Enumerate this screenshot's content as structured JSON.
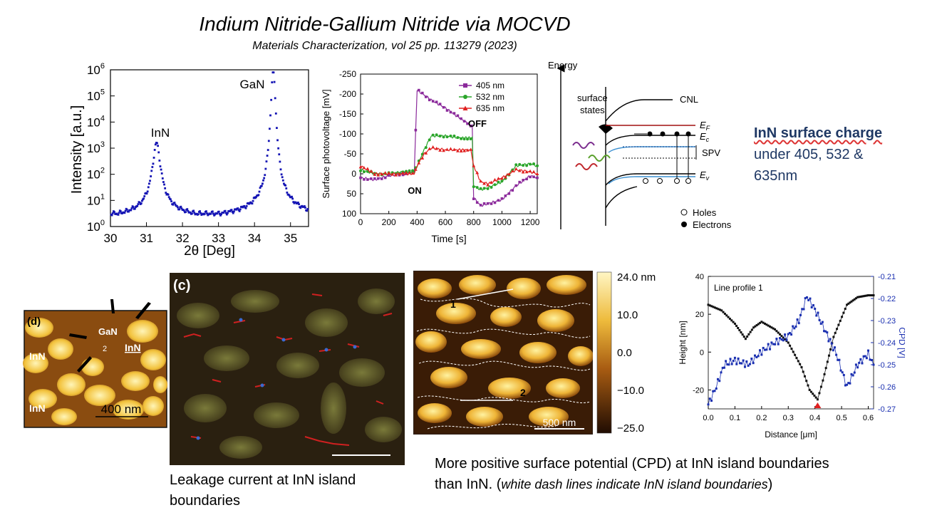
{
  "slide": {
    "title": "Indium Nitride-Gallium Nitride via MOCVD",
    "citation": "Materials Characterization, vol 25 pp. 113279 (2023)"
  },
  "side_note": {
    "bold": "InN surface charge",
    "line2": "under 405, 532 &",
    "line3": "635nm"
  },
  "caption_left": {
    "line1": "Leakage current at InN island",
    "line2": "boundaries"
  },
  "caption_right": {
    "line1": "More positive surface potential (CPD) at InN island boundaries",
    "line2_a": "than InN. (",
    "line2_italic": "white dash lines indicate InN island boundaries",
    "line2_b": ")"
  },
  "energy_diagram": {
    "axis_label": "Energy",
    "surface_states": "surface",
    "surface_states2": "states",
    "cnl": "CNL",
    "ef": "E",
    "ef_sub": "F",
    "ec": "E",
    "ec_sub": "c",
    "ev": "E",
    "ev_sub": "v",
    "spv": "SPV",
    "holes": "Holes",
    "electrons": "Electrons",
    "colors": {
      "purple": "#7b2d8e",
      "green": "#5aa02c",
      "red": "#c0282d",
      "blue": "#3a8fd0",
      "ef_line": "#a01010"
    }
  },
  "afm_d": {
    "panel": "(d)",
    "gan": "GaN",
    "num": "2",
    "inn1": "InN",
    "inn2": "InN",
    "inn3": "InN",
    "scale": "400 nm"
  },
  "afm_c": {
    "panel": "(c)"
  },
  "afm_cpd": {
    "label1": "1",
    "label2": "2",
    "scale": "500 nm",
    "colorbar_ticks": [
      "24.0 nm",
      "10.0",
      "0.0",
      "−10.0",
      "−25.0"
    ]
  },
  "chart_data": [
    {
      "type": "line",
      "xlabel": "2θ [Deg]",
      "ylabel": "Intensity [a.u.]",
      "xlim": [
        30,
        35.5
      ],
      "ylog": true,
      "ylim_exp": [
        0,
        6
      ],
      "x_ticks": [
        "30",
        "31",
        "32",
        "33",
        "34",
        "35"
      ],
      "y_ticks": [
        "10",
        "10",
        "10",
        "10",
        "10",
        "10",
        "10"
      ],
      "y_tick_exp": [
        "0",
        "1",
        "2",
        "3",
        "4",
        "5",
        "6"
      ],
      "annotations": [
        {
          "text": "InN",
          "x": 31.3
        },
        {
          "text": "GaN",
          "x": 34.5
        }
      ],
      "peaks": [
        {
          "x0": 31.28,
          "amp_log": 3.0
        },
        {
          "x0": 34.52,
          "amp_log": 5.8
        }
      ],
      "baseline_log": 0.5,
      "color": "#1414b4"
    },
    {
      "type": "line",
      "xlabel": "Time [s]",
      "ylabel": "Surface photovoltage [mV]",
      "xlim": [
        0,
        1250
      ],
      "ylim": [
        100,
        -250
      ],
      "x_ticks": [
        "0",
        "200",
        "400",
        "600",
        "800",
        "1000",
        "1200"
      ],
      "y_ticks": [
        "-250",
        "-200",
        "-150",
        "-100",
        "-50",
        "0",
        "50",
        "100"
      ],
      "annotations": [
        {
          "text": "ON",
          "x": 380,
          "y": 35
        },
        {
          "text": "OFF",
          "x": 800,
          "y": -110
        }
      ],
      "series": [
        {
          "name": "405 nm",
          "color": "#8b2a9b",
          "marker": "square",
          "x": [
            0,
            100,
            200,
            300,
            380,
            400,
            500,
            600,
            700,
            790,
            800,
            850,
            900,
            1000,
            1100,
            1200,
            1250
          ],
          "y": [
            10,
            15,
            5,
            0,
            -5,
            -210,
            -185,
            -165,
            -140,
            -120,
            60,
            80,
            75,
            65,
            30,
            5,
            10
          ]
        },
        {
          "name": "532 nm",
          "color": "#2aa52a",
          "marker": "circle",
          "x": [
            0,
            100,
            200,
            300,
            380,
            400,
            450,
            500,
            600,
            700,
            790,
            800,
            850,
            900,
            1000,
            1100,
            1200,
            1250
          ],
          "y": [
            -10,
            0,
            0,
            -5,
            -5,
            -20,
            -60,
            -95,
            -95,
            -90,
            -90,
            30,
            40,
            35,
            20,
            -20,
            -25,
            -20
          ]
        },
        {
          "name": "635 nm",
          "color": "#e02020",
          "marker": "triangle",
          "x": [
            0,
            100,
            200,
            300,
            380,
            400,
            450,
            500,
            600,
            700,
            780,
            800,
            850,
            900,
            1000,
            1100,
            1200,
            1250
          ],
          "y": [
            -20,
            0,
            0,
            0,
            0,
            -20,
            -50,
            -65,
            -60,
            -60,
            -60,
            -20,
            20,
            25,
            10,
            -10,
            -5,
            0
          ]
        }
      ]
    },
    {
      "type": "line",
      "title": "Line profile 1",
      "xlabel": "Distance [μm]",
      "ylabel": "Height [nm]",
      "ylabel_right": "CPD [V]",
      "xlim": [
        0,
        0.62
      ],
      "ylim": [
        -30,
        40
      ],
      "ylim_right": [
        -0.27,
        -0.21
      ],
      "x_ticks": [
        "0.0",
        "0.1",
        "0.2",
        "0.3",
        "0.4",
        "0.5",
        "0.6"
      ],
      "y_ticks": [
        "-20",
        "0",
        "20",
        "40"
      ],
      "y_ticks_right": [
        "-0.27",
        "-0.26",
        "-0.25",
        "-0.24",
        "-0.23",
        "-0.22",
        "-0.21"
      ],
      "series": [
        {
          "name": "Height",
          "axis": "left",
          "color": "#111111",
          "x": [
            0.0,
            0.05,
            0.1,
            0.14,
            0.17,
            0.2,
            0.25,
            0.3,
            0.35,
            0.38,
            0.41,
            0.43,
            0.47,
            0.52,
            0.56,
            0.6,
            0.62
          ],
          "y": [
            25,
            22,
            15,
            7,
            13,
            16,
            12,
            5,
            -8,
            -20,
            -25,
            -15,
            8,
            25,
            29,
            30,
            30
          ]
        },
        {
          "name": "CPD",
          "axis": "right",
          "color": "#1a2fb0",
          "x": [
            0.0,
            0.03,
            0.06,
            0.1,
            0.15,
            0.2,
            0.25,
            0.3,
            0.34,
            0.37,
            0.4,
            0.44,
            0.48,
            0.52,
            0.56,
            0.6,
            0.62
          ],
          "y": [
            -0.268,
            -0.26,
            -0.25,
            -0.248,
            -0.25,
            -0.244,
            -0.24,
            -0.237,
            -0.23,
            -0.219,
            -0.225,
            -0.235,
            -0.245,
            -0.26,
            -0.25,
            -0.245,
            -0.25
          ]
        }
      ],
      "marker_x": 0.41
    }
  ]
}
